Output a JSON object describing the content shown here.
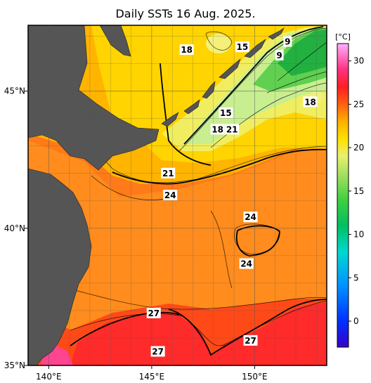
{
  "title": "Daily SSTs 16 Aug. 2025.",
  "colorbar": {
    "unit": "[°C]",
    "min": -3,
    "max": 32,
    "ticks": [
      0,
      5,
      10,
      15,
      20,
      25,
      30
    ],
    "stops": [
      {
        "v": -3,
        "color": "#3a00c8"
      },
      {
        "v": 0,
        "color": "#0030ff"
      },
      {
        "v": 4,
        "color": "#0090ff"
      },
      {
        "v": 8,
        "color": "#00d8d0"
      },
      {
        "v": 11,
        "color": "#00c060"
      },
      {
        "v": 14,
        "color": "#40d040"
      },
      {
        "v": 17,
        "color": "#a8e060"
      },
      {
        "v": 19,
        "color": "#e8f070"
      },
      {
        "v": 21,
        "color": "#ffe000"
      },
      {
        "v": 23,
        "color": "#ffb000"
      },
      {
        "v": 25,
        "color": "#ff6010"
      },
      {
        "v": 27,
        "color": "#ff2020"
      },
      {
        "v": 29,
        "color": "#ff3080"
      },
      {
        "v": 32,
        "color": "#ffb0ff"
      }
    ]
  },
  "axes": {
    "lon_ticks": [
      {
        "v": 140,
        "label": "140°E"
      },
      {
        "v": 145,
        "label": "145°E"
      },
      {
        "v": 150,
        "label": "150°E"
      }
    ],
    "lat_ticks": [
      {
        "v": 35,
        "label": "35°N"
      },
      {
        "v": 40,
        "label": "40°N"
      },
      {
        "v": 45,
        "label": "45°N"
      }
    ]
  },
  "contour_labels": [
    {
      "text": "18",
      "lon": 146.7,
      "lat": 46.5
    },
    {
      "text": "15",
      "lon": 149.4,
      "lat": 46.6
    },
    {
      "text": "9",
      "lon": 151.6,
      "lat": 46.8
    },
    {
      "text": "9",
      "lon": 151.2,
      "lat": 46.3
    },
    {
      "text": "18",
      "lon": 152.7,
      "lat": 44.6
    },
    {
      "text": "15",
      "lon": 148.6,
      "lat": 44.2
    },
    {
      "text": "18",
      "lon": 148.2,
      "lat": 43.6
    },
    {
      "text": "21",
      "lon": 148.9,
      "lat": 43.6
    },
    {
      "text": "21",
      "lon": 145.8,
      "lat": 42.0
    },
    {
      "text": "24",
      "lon": 145.9,
      "lat": 41.2
    },
    {
      "text": "24",
      "lon": 149.8,
      "lat": 40.4
    },
    {
      "text": "24",
      "lon": 149.6,
      "lat": 38.7
    },
    {
      "text": "27",
      "lon": 145.1,
      "lat": 36.9
    },
    {
      "text": "27",
      "lon": 145.3,
      "lat": 35.5
    },
    {
      "text": "27",
      "lon": 149.8,
      "lat": 35.9
    }
  ]
}
